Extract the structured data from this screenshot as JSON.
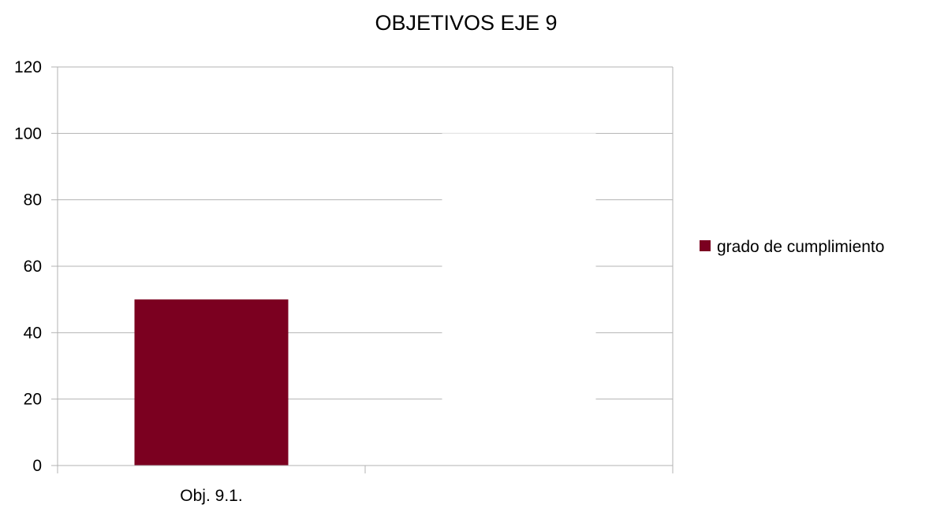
{
  "chart_data": {
    "type": "bar",
    "title": "OBJETIVOS EJE 9",
    "categories": [
      "Obj. 9.1.",
      ""
    ],
    "series": [
      {
        "name": "grado de cumplimiento",
        "values": [
          50,
          100
        ],
        "colors": [
          "#7b0020",
          "#ffffff"
        ]
      }
    ],
    "ylim": [
      0,
      120
    ],
    "yticks": [
      0,
      20,
      40,
      60,
      80,
      100,
      120
    ],
    "grid": true,
    "legend_position": "right",
    "gridline_color": "#b3b3b3",
    "axis_color": "#b3b3b3"
  }
}
